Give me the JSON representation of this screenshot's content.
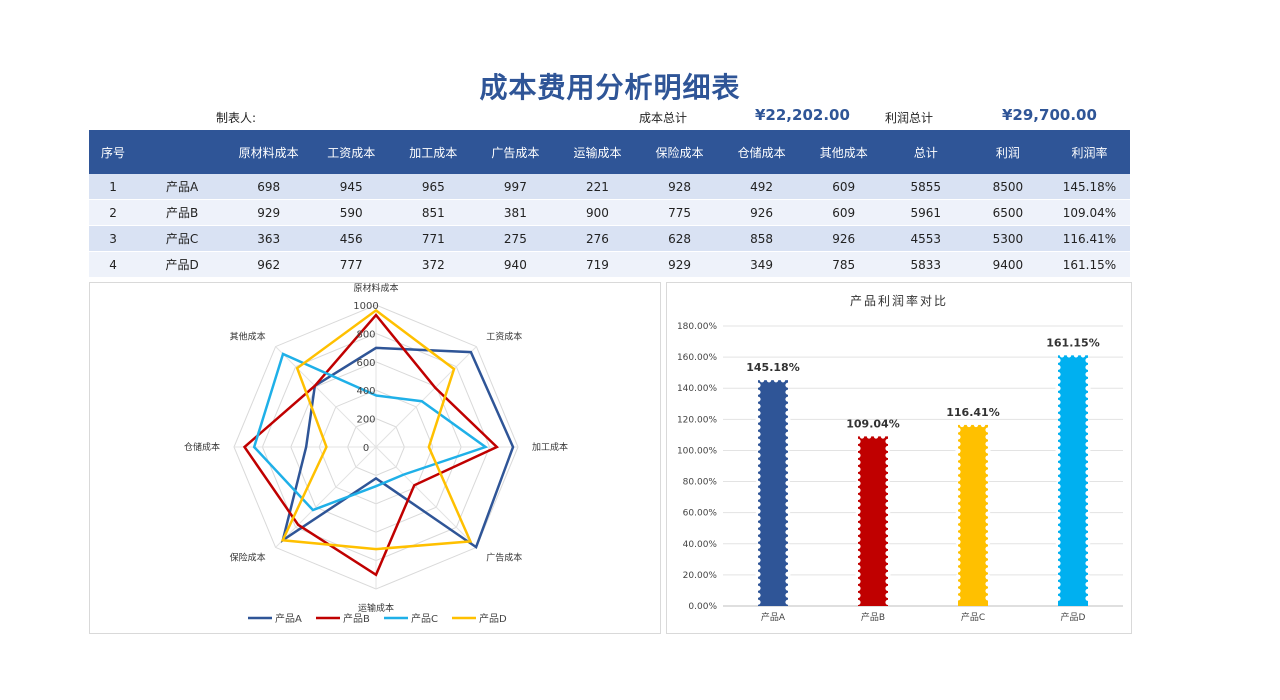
{
  "title": "成本费用分析明细表",
  "header_info": {
    "maker_label": "制表人:",
    "cost_total_label": "成本总计",
    "cost_total_value": "¥22,202.00",
    "profit_total_label": "利润总计",
    "profit_total_value": "¥29,700.00"
  },
  "table": {
    "columns": [
      "序号",
      "",
      "原材料成本",
      "工资成本",
      "加工成本",
      "广告成本",
      "运输成本",
      "保险成本",
      "仓储成本",
      "其他成本",
      "总计",
      "利润",
      "利润率"
    ],
    "rows": [
      [
        "1",
        "产品A",
        "698",
        "945",
        "965",
        "997",
        "221",
        "928",
        "492",
        "609",
        "5855",
        "8500",
        "145.18%"
      ],
      [
        "2",
        "产品B",
        "929",
        "590",
        "851",
        "381",
        "900",
        "775",
        "926",
        "609",
        "5961",
        "6500",
        "109.04%"
      ],
      [
        "3",
        "产品C",
        "363",
        "456",
        "771",
        "275",
        "276",
        "628",
        "858",
        "926",
        "4553",
        "5300",
        "116.41%"
      ],
      [
        "4",
        "产品D",
        "962",
        "777",
        "372",
        "940",
        "719",
        "929",
        "349",
        "785",
        "5833",
        "9400",
        "161.15%"
      ]
    ]
  },
  "chart_data": [
    {
      "type": "radar",
      "title": "",
      "categories": [
        "原材料成本",
        "工资成本",
        "加工成本",
        "广告成本",
        "运输成本",
        "保险成本",
        "仓储成本",
        "其他成本"
      ],
      "radial_ticks": [
        "0",
        "200",
        "400",
        "600",
        "800",
        "1000"
      ],
      "rmax": 1000,
      "series": [
        {
          "name": "产品A",
          "color": "#2f5597",
          "values": [
            698,
            945,
            965,
            997,
            221,
            928,
            492,
            609
          ]
        },
        {
          "name": "产品B",
          "color": "#c00000",
          "values": [
            929,
            590,
            851,
            381,
            900,
            775,
            926,
            609
          ]
        },
        {
          "name": "产品C",
          "color": "#1fb0e8",
          "values": [
            363,
            456,
            771,
            275,
            276,
            628,
            858,
            926
          ]
        },
        {
          "name": "产品D",
          "color": "#ffc000",
          "values": [
            962,
            777,
            372,
            940,
            719,
            929,
            349,
            785
          ]
        }
      ],
      "legend_position": "bottom",
      "grid": true
    },
    {
      "type": "bar",
      "title": "产品利润率对比",
      "categories": [
        "产品A",
        "产品B",
        "产品C",
        "产品D"
      ],
      "values": [
        145.18,
        109.04,
        116.41,
        161.15
      ],
      "labels": [
        "145.18%",
        "109.04%",
        "116.41%",
        "161.15%"
      ],
      "colors": [
        "#2f5597",
        "#c00000",
        "#ffc000",
        "#00b0f0"
      ],
      "y_ticks": [
        "0.00%",
        "20.00%",
        "40.00%",
        "60.00%",
        "80.00%",
        "100.00%",
        "120.00%",
        "140.00%",
        "160.00%",
        "180.00%"
      ],
      "ylim": [
        0,
        180
      ],
      "grid": true
    }
  ]
}
